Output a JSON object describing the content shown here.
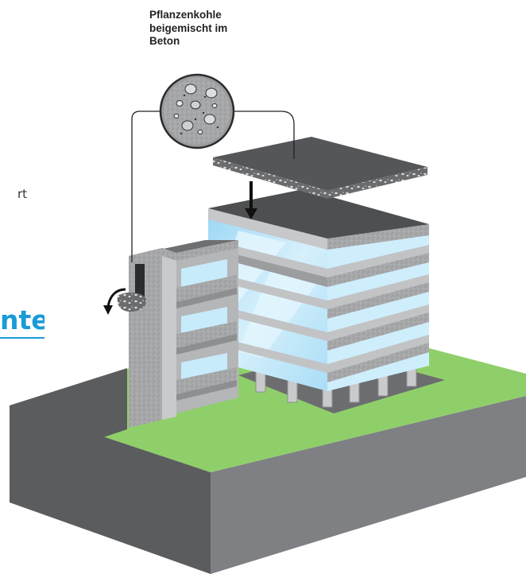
{
  "callout": {
    "label": "Pflanzenkohle\nbeigemischt im\nBeton"
  },
  "cropped": {
    "text_fragment": "rt",
    "link_fragment": "nte"
  },
  "colors": {
    "ground_side_left": "#5b5c5e",
    "ground_side_right": "#7f8083",
    "grass": "#8fcf6a",
    "glass": "#bfe7fb",
    "glass_highlight": "#e3f5fd",
    "concrete": "#a9aaac",
    "concrete_dark": "#8e8f91",
    "accent_blue": "#1a9bd7"
  },
  "icons": {
    "rotate_arrow": "curved-arrow-icon",
    "down_arrow": "down-arrow-icon"
  }
}
